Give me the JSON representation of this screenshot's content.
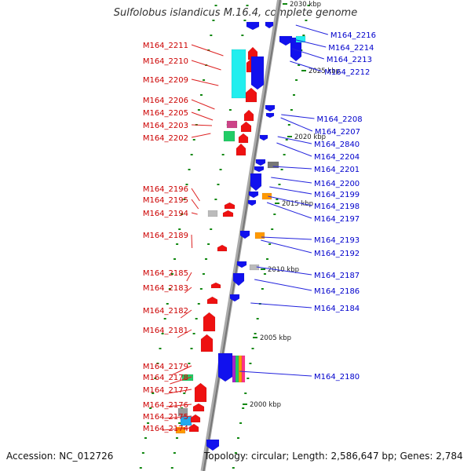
{
  "title": "Sulfolobus islandicus M.16.4, complete genome",
  "footer": {
    "accession": "Accession: NC_012726",
    "summary": "Topology: circular; Length: 2,586,647 bp; Genes: 2,784"
  },
  "colors": {
    "reverse": "#ee1111",
    "forward": "#1111ee",
    "cyan": "#22eeee",
    "gray": "#888888",
    "orange": "#ff9900",
    "green": "#22cc66",
    "tick": "#118811"
  },
  "scale": [
    {
      "label": "2030 kbp"
    },
    {
      "label": "2025 kbp"
    },
    {
      "label": "2020 kbp"
    },
    {
      "label": "2015 kbp"
    },
    {
      "label": "2010 kbp"
    },
    {
      "label": "2005 kbp"
    },
    {
      "label": "2000 kbp"
    }
  ],
  "left_genes": [
    "M164_2211",
    "M164_2210",
    "M164_2209",
    "M164_2206",
    "M164_2205",
    "M164_2203",
    "M164_2202",
    "M164_2196",
    "M164_2195",
    "M164_2194",
    "M164_2189",
    "M164_2185",
    "M164_2183",
    "M164_2182",
    "M164_2181",
    "M164_2179",
    "M164_2178",
    "M164_2177",
    "M164_2176",
    "M164_2175",
    "M164_2174"
  ],
  "right_genes": [
    "M164_2216",
    "M164_2214",
    "M164_2213",
    "M164_2212",
    "M164_2208",
    "M164_2207",
    "M164_2840",
    "M164_2204",
    "M164_2201",
    "M164_2200",
    "M164_2199",
    "M164_2198",
    "M164_2197",
    "M164_2193",
    "M164_2192",
    "M164_2187",
    "M164_2186",
    "M164_2184",
    "M164_2180"
  ]
}
